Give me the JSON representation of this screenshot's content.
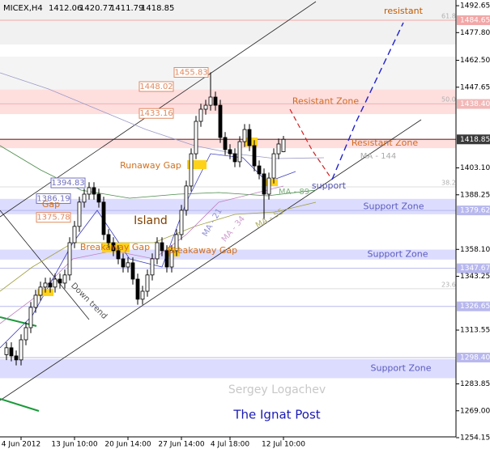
{
  "chart_data": {
    "type": "candlestick",
    "title": "MICEX,H4",
    "categories": [
      null,
      null,
      null,
      "4 Jun 2012",
      null,
      null,
      null,
      null,
      null,
      null,
      null,
      null,
      null,
      null,
      "13 Jun 10:00",
      null,
      null,
      null,
      null,
      null,
      null,
      null,
      null,
      null,
      null,
      "20 Jun 14:00",
      null,
      null,
      null,
      null,
      null,
      null,
      null,
      null,
      null,
      null,
      "27 Jun 14:00",
      null,
      null,
      null,
      null,
      null,
      null,
      null,
      null,
      null,
      "4 Jul 18:00",
      null,
      null,
      null,
      null,
      null,
      null,
      null,
      null,
      null,
      null,
      "12 Jul 10:00"
    ],
    "open": [
      1300.0,
      1303.8,
      1299.3,
      1297.1,
      1308.2,
      1314.9,
      1326.1,
      1332.8,
      1337.3,
      1339.5,
      1337.3,
      1341.7,
      1339.5,
      1344.0,
      1361.8,
      1370.8,
      1384.2,
      1388.6,
      1392.2,
      1388.6,
      1384.2,
      1366.3,
      1361.8,
      1357.4,
      1352.9,
      1348.4,
      1350.7,
      1341.7,
      1330.6,
      1335.0,
      1344.0,
      1352.9,
      1361.8,
      1357.4,
      1348.4,
      1357.4,
      1366.3,
      1379.7,
      1393.1,
      1410.9,
      1428.8,
      1435.5,
      1437.7,
      1442.2,
      1437.7,
      1419.9,
      1413.2,
      1410.9,
      1406.5,
      1417.6,
      1424.3,
      1415.4,
      1404.2,
      1399.8,
      1388.6,
      1397.5,
      1410.9,
      1412.06
    ],
    "high": [
      1306.8,
      1306.8,
      1302.3,
      1311.2,
      1317.9,
      1329.1,
      1335.8,
      1340.3,
      1342.5,
      1342.5,
      1344.7,
      1344.7,
      1347.0,
      1364.8,
      1373.8,
      1387.2,
      1391.6,
      1395.2,
      1395.2,
      1391.6,
      1387.2,
      1369.3,
      1364.8,
      1360.4,
      1355.9,
      1353.7,
      1353.7,
      1344.7,
      1338.0,
      1347.0,
      1355.9,
      1364.8,
      1364.8,
      1360.4,
      1360.4,
      1369.3,
      1382.7,
      1396.1,
      1413.9,
      1431.8,
      1438.5,
      1440.7,
      1455.83,
      1445.2,
      1440.7,
      1422.9,
      1416.2,
      1413.9,
      1420.6,
      1427.3,
      1427.3,
      1418.4,
      1407.2,
      1402.8,
      1400.5,
      1413.9,
      1419.3,
      1420.77
    ],
    "low": [
      1297.0,
      1296.3,
      1294.1,
      1294.1,
      1305.2,
      1311.9,
      1323.1,
      1329.8,
      1334.3,
      1334.3,
      1334.3,
      1336.5,
      1336.5,
      1341.0,
      1358.8,
      1367.8,
      1381.2,
      1385.6,
      1385.6,
      1381.2,
      1363.3,
      1358.8,
      1354.4,
      1349.9,
      1345.4,
      1345.4,
      1338.7,
      1327.6,
      1327.6,
      1332.0,
      1341.0,
      1349.9,
      1354.4,
      1345.4,
      1345.4,
      1354.4,
      1363.3,
      1376.7,
      1390.1,
      1407.9,
      1425.8,
      1432.5,
      1434.7,
      1434.7,
      1416.9,
      1410.2,
      1407.9,
      1403.5,
      1403.5,
      1414.6,
      1412.4,
      1401.2,
      1396.8,
      1375.0,
      1385.6,
      1394.5,
      1407.9,
      1411.79
    ],
    "close": [
      1303.8,
      1299.3,
      1297.1,
      1308.2,
      1314.9,
      1326.1,
      1332.8,
      1337.3,
      1339.5,
      1337.3,
      1341.7,
      1339.5,
      1344.0,
      1361.8,
      1370.8,
      1384.2,
      1388.6,
      1392.2,
      1388.6,
      1384.2,
      1366.3,
      1361.8,
      1357.4,
      1352.9,
      1348.4,
      1350.7,
      1341.7,
      1330.6,
      1335.0,
      1344.0,
      1352.9,
      1361.8,
      1357.4,
      1348.4,
      1357.4,
      1366.3,
      1379.7,
      1393.1,
      1410.9,
      1428.8,
      1435.5,
      1437.7,
      1442.2,
      1437.7,
      1419.9,
      1413.2,
      1410.9,
      1406.5,
      1417.6,
      1424.3,
      1415.4,
      1404.2,
      1399.8,
      1388.6,
      1397.5,
      1410.9,
      1416.3,
      1418.85
    ],
    "colors": {
      "up": "#ffffff",
      "down": "#000000"
    },
    "ylim": [
      1254.6,
      1495.8
    ],
    "yticks": [
      1492.65,
      {
        "value": 1477.8,
        "label": "1477.80"
      },
      {
        "value": 1462.5,
        "label": "1462.50"
      },
      1447.65,
      {
        "value": 1403.1,
        "label": "1403.10"
      },
      1388.25,
      {
        "value": 1358.1,
        "label": "1358.10"
      },
      1343.25,
      1313.55,
      1283.85,
      {
        "value": 1269.0,
        "label": "1269.00"
      },
      1254.15
    ],
    "levels": [
      {
        "value": 1484.65,
        "label": "1484.65",
        "color": "#f2a6a6"
      },
      {
        "value": 1438.4,
        "label": "1438.40",
        "color": "#f2b8b8"
      },
      {
        "value": 1418.85,
        "label": "1418.85",
        "color": "#3a3a3a"
      },
      {
        "value": 1379.62,
        "label": "1379.62",
        "color": "#b8b8ee"
      },
      {
        "value": 1347.67,
        "label": "1347.67",
        "color": "#b8b8ee"
      },
      {
        "value": 1326.65,
        "label": "1326.65",
        "color": "#b8b8ee"
      },
      {
        "value": 1298.4,
        "label": "1298.40",
        "color": "#b8b8ee"
      }
    ],
    "zones": [
      {
        "label": "Resistant Zone",
        "from": 1432.8,
        "to": 1446.5,
        "color": "#ffdede"
      },
      {
        "label": "Resistant Zone",
        "from": 1414.0,
        "to": 1419.5,
        "color": "#ffdede"
      },
      {
        "label": "Support Zone",
        "from": 1377.5,
        "to": 1386.0,
        "color": "#dcdcff"
      },
      {
        "label": "Support Zone",
        "from": 1352.5,
        "to": 1358.0,
        "color": "#dcdcff"
      },
      {
        "label": "Support Zone",
        "from": 1287.0,
        "to": 1297.5,
        "color": "#dcdcff"
      }
    ],
    "price_boxes": [
      {
        "value": 1455.83,
        "color": "#e08a60"
      },
      {
        "value": 1448.02,
        "color": "#e08a60"
      },
      {
        "value": 1433.16,
        "color": "#e08a60"
      },
      {
        "value": 1394.83,
        "color": "#7070c0"
      },
      {
        "value": 1386.19,
        "color": "#7070c0"
      },
      {
        "value": 1375.78,
        "color": "#e08a60"
      }
    ],
    "fib_levels": [
      {
        "label": "61.8",
        "price": 1484.65
      },
      {
        "label": "50.0",
        "price": 1438.6
      },
      {
        "label": "38.2",
        "price": 1392.6
      },
      {
        "label": "23.6",
        "price": 1336.4
      }
    ],
    "annotations": [
      "resistant",
      "MA - 144",
      "support",
      "MA - 89",
      "Island",
      "MA - 21",
      "MA - 34",
      "MA - 55",
      "Runaway Gap",
      "Breakaway Gap",
      "Breakaway Gap",
      "Gap",
      "Down trend"
    ],
    "watermark": "Sergey Logachev",
    "footer": "The Ignat Post"
  }
}
